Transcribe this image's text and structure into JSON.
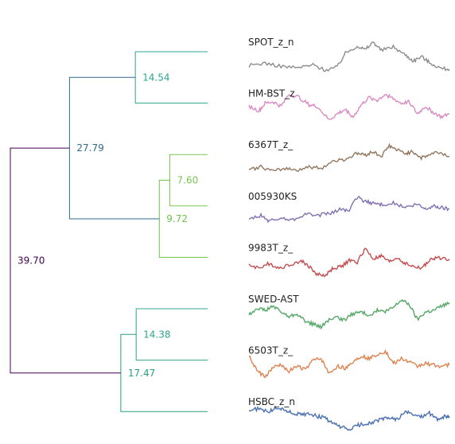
{
  "chart_data": {
    "type": "dendrogram",
    "leaves": [
      "SPOT_z_n",
      "HM-BST_z",
      "6367T_z_",
      "005930KS",
      "9983T_z_",
      "SWED-AST",
      "6503T_z_",
      "HSBC_z_n"
    ],
    "merges": [
      {
        "left": "SPOT_z_n",
        "right": "HM-BST_z",
        "height": 14.54,
        "label": "14.54",
        "color": "#2ca58d"
      },
      {
        "left": "6367T_z_",
        "right": "005930KS",
        "height": 7.6,
        "label": "7.60",
        "color": "#78c850"
      },
      {
        "left": "9983T_z_",
        "right": "m2",
        "height": 9.72,
        "label": "9.72",
        "color": "#6cc24a"
      },
      {
        "left": "m1",
        "right": "m3",
        "height": 27.79,
        "label": "27.79",
        "color": "#31688e"
      },
      {
        "left": "SWED-AST",
        "right": "6503T_z_",
        "height": 14.38,
        "label": "14.38",
        "color": "#2ca58d"
      },
      {
        "left": "m5",
        "right": "HSBC_z_n",
        "height": 17.47,
        "label": "17.47",
        "color": "#26a07f"
      },
      {
        "left": "m4",
        "right": "m6",
        "height": 39.7,
        "label": "39.70",
        "color": "#440154"
      }
    ],
    "series_colors": {
      "SPOT_z_n": "#8c8c8c",
      "HM-BST_z": "#da8bc3",
      "6367T_z_": "#937860",
      "005930KS": "#8172b3",
      "9983T_z_": "#c44e52",
      "SWED-AST": "#55a868",
      "6503T_z_": "#dd8452",
      "HSBC_z_n": "#4c72b0"
    },
    "series_shapes": {
      "SPOT_z_n": [
        [
          0,
          0.2
        ],
        [
          0.08,
          0.28
        ],
        [
          0.16,
          0.18
        ],
        [
          0.24,
          0.12
        ],
        [
          0.32,
          0.22
        ],
        [
          0.38,
          0.05
        ],
        [
          0.44,
          0.15
        ],
        [
          0.48,
          0.6
        ],
        [
          0.54,
          0.85
        ],
        [
          0.58,
          0.72
        ],
        [
          0.62,
          0.98
        ],
        [
          0.66,
          0.7
        ],
        [
          0.72,
          0.82
        ],
        [
          0.78,
          0.55
        ],
        [
          0.82,
          0.35
        ],
        [
          0.86,
          0.5
        ],
        [
          0.9,
          0.3
        ],
        [
          0.96,
          0.1
        ],
        [
          1,
          0.08
        ]
      ],
      "HM-BST_z": [
        [
          0,
          0.55
        ],
        [
          0.05,
          0.4
        ],
        [
          0.08,
          0.65
        ],
        [
          0.12,
          0.7
        ],
        [
          0.16,
          0.55
        ],
        [
          0.2,
          0.95
        ],
        [
          0.25,
          0.85
        ],
        [
          0.3,
          0.6
        ],
        [
          0.34,
          0.55
        ],
        [
          0.4,
          0.1
        ],
        [
          0.44,
          0.3
        ],
        [
          0.48,
          0.45
        ],
        [
          0.52,
          0.2
        ],
        [
          0.56,
          0.6
        ],
        [
          0.6,
          0.85
        ],
        [
          0.64,
          0.75
        ],
        [
          0.68,
          0.95
        ],
        [
          0.72,
          0.8
        ],
        [
          0.76,
          0.65
        ],
        [
          0.8,
          0.7
        ],
        [
          0.84,
          0.3
        ],
        [
          0.88,
          0.55
        ],
        [
          0.92,
          0.35
        ],
        [
          0.96,
          0.2
        ],
        [
          1,
          0.3
        ]
      ],
      "6367T_z_": [
        [
          0,
          0.15
        ],
        [
          0.06,
          0.25
        ],
        [
          0.12,
          0.1
        ],
        [
          0.18,
          0.2
        ],
        [
          0.24,
          0.15
        ],
        [
          0.3,
          0.25
        ],
        [
          0.36,
          0.2
        ],
        [
          0.42,
          0.45
        ],
        [
          0.48,
          0.5
        ],
        [
          0.54,
          0.7
        ],
        [
          0.58,
          0.65
        ],
        [
          0.62,
          0.75
        ],
        [
          0.66,
          0.6
        ],
        [
          0.7,
          0.95
        ],
        [
          0.74,
          0.8
        ],
        [
          0.78,
          0.7
        ],
        [
          0.82,
          0.75
        ],
        [
          0.86,
          0.55
        ],
        [
          0.9,
          0.65
        ],
        [
          0.94,
          0.75
        ],
        [
          1,
          0.6
        ]
      ],
      "005930KS": [
        [
          0,
          0.2
        ],
        [
          0.06,
          0.35
        ],
        [
          0.1,
          0.15
        ],
        [
          0.16,
          0.25
        ],
        [
          0.22,
          0.2
        ],
        [
          0.28,
          0.4
        ],
        [
          0.34,
          0.35
        ],
        [
          0.4,
          0.4
        ],
        [
          0.46,
          0.55
        ],
        [
          0.5,
          0.5
        ],
        [
          0.54,
          0.95
        ],
        [
          0.58,
          0.8
        ],
        [
          0.62,
          0.75
        ],
        [
          0.66,
          0.7
        ],
        [
          0.72,
          0.75
        ],
        [
          0.78,
          0.6
        ],
        [
          0.84,
          0.7
        ],
        [
          0.88,
          0.55
        ],
        [
          0.92,
          0.65
        ],
        [
          0.96,
          0.6
        ],
        [
          1,
          0.55
        ]
      ],
      "9983T_z_": [
        [
          0,
          0.4
        ],
        [
          0.05,
          0.3
        ],
        [
          0.1,
          0.45
        ],
        [
          0.15,
          0.3
        ],
        [
          0.2,
          0.4
        ],
        [
          0.26,
          0.55
        ],
        [
          0.3,
          0.35
        ],
        [
          0.34,
          0.1
        ],
        [
          0.38,
          0.05
        ],
        [
          0.42,
          0.3
        ],
        [
          0.46,
          0.35
        ],
        [
          0.5,
          0.55
        ],
        [
          0.54,
          0.5
        ],
        [
          0.58,
          0.95
        ],
        [
          0.62,
          0.6
        ],
        [
          0.66,
          0.7
        ],
        [
          0.7,
          0.5
        ],
        [
          0.74,
          0.65
        ],
        [
          0.78,
          0.45
        ],
        [
          0.82,
          0.35
        ],
        [
          0.86,
          0.3
        ],
        [
          0.9,
          0.55
        ],
        [
          0.94,
          0.65
        ],
        [
          1,
          0.6
        ]
      ],
      "SWED-AST": [
        [
          0,
          0.45
        ],
        [
          0.04,
          0.7
        ],
        [
          0.08,
          0.6
        ],
        [
          0.12,
          0.75
        ],
        [
          0.16,
          0.55
        ],
        [
          0.2,
          0.4
        ],
        [
          0.24,
          0.5
        ],
        [
          0.28,
          0.25
        ],
        [
          0.32,
          0.15
        ],
        [
          0.36,
          0.05
        ],
        [
          0.4,
          0.3
        ],
        [
          0.44,
          0.35
        ],
        [
          0.48,
          0.3
        ],
        [
          0.52,
          0.5
        ],
        [
          0.56,
          0.55
        ],
        [
          0.6,
          0.45
        ],
        [
          0.64,
          0.6
        ],
        [
          0.68,
          0.55
        ],
        [
          0.72,
          0.7
        ],
        [
          0.76,
          0.95
        ],
        [
          0.8,
          0.8
        ],
        [
          0.84,
          0.3
        ],
        [
          0.88,
          0.55
        ],
        [
          0.92,
          0.6
        ],
        [
          0.96,
          0.75
        ],
        [
          1,
          0.85
        ]
      ],
      "6503T_z_": [
        [
          0,
          0.8
        ],
        [
          0.04,
          0.3
        ],
        [
          0.08,
          0.1
        ],
        [
          0.12,
          0.4
        ],
        [
          0.16,
          0.5
        ],
        [
          0.2,
          0.3
        ],
        [
          0.24,
          0.45
        ],
        [
          0.28,
          0.35
        ],
        [
          0.32,
          0.65
        ],
        [
          0.36,
          0.7
        ],
        [
          0.4,
          0.2
        ],
        [
          0.44,
          0.45
        ],
        [
          0.48,
          0.4
        ],
        [
          0.52,
          0.6
        ],
        [
          0.56,
          0.8
        ],
        [
          0.6,
          0.7
        ],
        [
          0.64,
          0.85
        ],
        [
          0.68,
          0.95
        ],
        [
          0.72,
          0.55
        ],
        [
          0.76,
          0.7
        ],
        [
          0.8,
          0.6
        ],
        [
          0.84,
          0.45
        ],
        [
          0.88,
          0.55
        ],
        [
          0.92,
          0.5
        ],
        [
          0.96,
          0.45
        ],
        [
          1,
          0.5
        ]
      ],
      "HSBC_z_n": [
        [
          0,
          0.7
        ],
        [
          0.05,
          0.75
        ],
        [
          0.1,
          0.65
        ],
        [
          0.14,
          0.8
        ],
        [
          0.18,
          0.7
        ],
        [
          0.22,
          0.6
        ],
        [
          0.26,
          0.55
        ],
        [
          0.3,
          0.6
        ],
        [
          0.34,
          0.5
        ],
        [
          0.38,
          0.45
        ],
        [
          0.42,
          0.25
        ],
        [
          0.46,
          0.15
        ],
        [
          0.5,
          0.05
        ],
        [
          0.54,
          0.2
        ],
        [
          0.58,
          0.25
        ],
        [
          0.62,
          0.3
        ],
        [
          0.66,
          0.4
        ],
        [
          0.7,
          0.45
        ],
        [
          0.74,
          0.4
        ],
        [
          0.78,
          0.65
        ],
        [
          0.82,
          0.55
        ],
        [
          0.86,
          0.5
        ],
        [
          0.9,
          0.6
        ],
        [
          0.94,
          0.4
        ],
        [
          0.98,
          0.5
        ],
        [
          1,
          0.45
        ]
      ]
    }
  }
}
